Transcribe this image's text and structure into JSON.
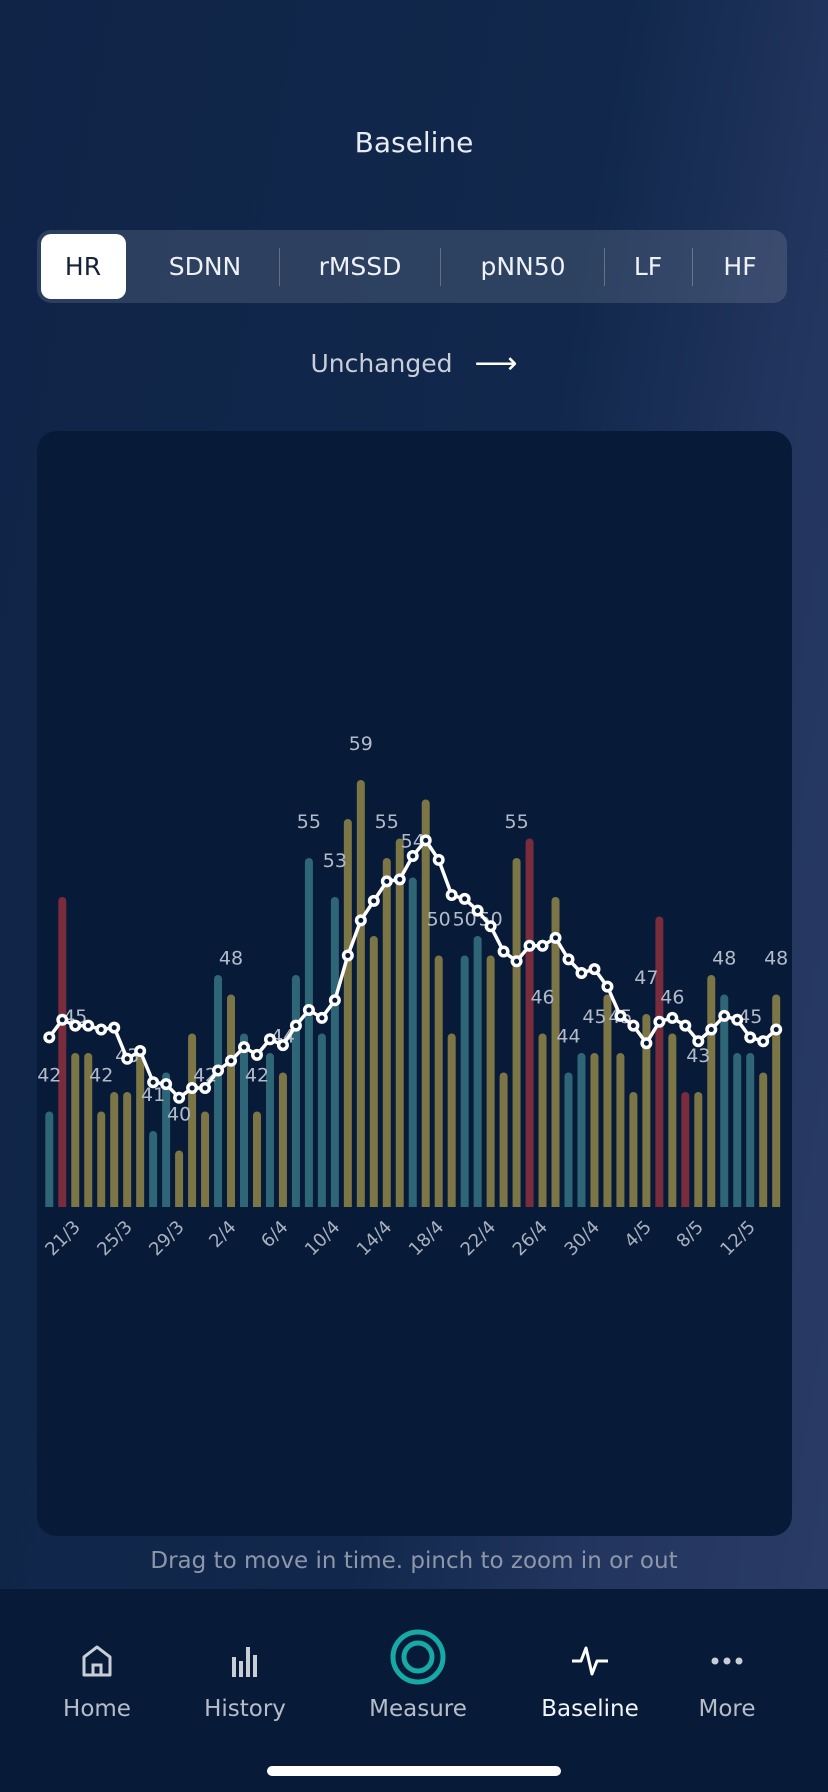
{
  "header": {
    "title": "Baseline"
  },
  "metric_tabs": [
    {
      "label": "HR",
      "active": true
    },
    {
      "label": "SDNN",
      "active": false
    },
    {
      "label": "rMSSD",
      "active": false
    },
    {
      "label": "pNN50",
      "active": false
    },
    {
      "label": "LF",
      "active": false
    },
    {
      "label": "HF",
      "active": false
    }
  ],
  "trend": {
    "label": "Unchanged",
    "icon": "arrow-right-icon",
    "arrow": "⟶"
  },
  "hint": "Drag to move in time. pinch to zoom in or out",
  "nav": [
    {
      "label": "Home",
      "icon": "home-icon",
      "active": false
    },
    {
      "label": "History",
      "icon": "bar-chart-icon",
      "active": false
    },
    {
      "label": "Measure",
      "icon": "measure-ring-icon",
      "active": false
    },
    {
      "label": "Baseline",
      "icon": "pulse-icon",
      "active": true
    },
    {
      "label": "More",
      "icon": "ellipsis-icon",
      "active": false
    }
  ],
  "colors": {
    "teal": "#2e6677",
    "olive": "#7c7545",
    "red": "#792c3c",
    "line": "#ffffff",
    "accent": "#17a9a6"
  },
  "chart_data": {
    "type": "bar",
    "categories": [
      "19/3",
      "20/3",
      "21/3",
      "22/3",
      "23/3",
      "24/3",
      "25/3",
      "26/3",
      "27/3",
      "28/3",
      "29/3",
      "30/3",
      "31/3",
      "1/4",
      "2/4",
      "3/4",
      "4/4",
      "5/4",
      "6/4",
      "7/4",
      "8/4",
      "9/4",
      "10/4",
      "11/4",
      "12/4",
      "13/4",
      "14/4",
      "15/4",
      "16/4",
      "17/4",
      "18/4",
      "19/4",
      "20/4",
      "21/4",
      "22/4",
      "23/4",
      "24/4",
      "25/4",
      "26/4",
      "27/4",
      "28/4",
      "29/4",
      "30/4",
      "1/5",
      "2/5",
      "3/5",
      "4/5",
      "5/5",
      "6/5",
      "7/5",
      "8/5",
      "9/5",
      "10/5",
      "11/5",
      "12/5",
      "13/5",
      "14/5"
    ],
    "x_tick_labels": [
      "21/3",
      "25/3",
      "29/3",
      "2/4",
      "6/4",
      "10/4",
      "14/4",
      "18/4",
      "22/4",
      "26/4",
      "30/4",
      "4/5",
      "8/5",
      "12/5"
    ],
    "series": [
      {
        "type": "bar",
        "values": [
          42,
          53,
          45,
          45,
          42,
          43,
          43,
          45,
          41,
          44,
          40,
          46,
          42,
          49,
          48,
          46,
          42,
          45,
          44,
          49,
          55,
          46,
          53,
          57,
          59,
          51,
          55,
          56,
          54,
          58,
          50,
          46,
          50,
          51,
          50,
          44,
          55,
          56,
          46,
          53,
          44,
          45,
          45,
          48,
          45,
          43,
          47,
          52,
          46,
          43,
          43,
          49,
          48,
          45,
          45,
          44,
          48
        ],
        "bar_colors": [
          "teal",
          "red",
          "olive",
          "olive",
          "olive",
          "olive",
          "olive",
          "olive",
          "teal",
          "teal",
          "olive",
          "olive",
          "olive",
          "teal",
          "olive",
          "teal",
          "olive",
          "teal",
          "olive",
          "teal",
          "teal",
          "teal",
          "teal",
          "olive",
          "olive",
          "olive",
          "olive",
          "olive",
          "teal",
          "olive",
          "olive",
          "olive",
          "teal",
          "teal",
          "olive",
          "olive",
          "olive",
          "red",
          "olive",
          "olive",
          "teal",
          "teal",
          "olive",
          "olive",
          "olive",
          "olive",
          "olive",
          "red",
          "olive",
          "red",
          "olive",
          "olive",
          "teal",
          "teal",
          "teal",
          "olive",
          "olive"
        ],
        "value_labels": [
          "42",
          "",
          "45",
          "",
          "42",
          "",
          "43",
          "",
          "41",
          "",
          "40",
          "",
          "42",
          "",
          "48",
          "",
          "42",
          "",
          "44",
          "",
          "55",
          "",
          "53",
          "",
          "59",
          "",
          "55",
          "",
          "54",
          "",
          "50",
          "",
          "50",
          "",
          "50",
          "",
          "55",
          "",
          "46",
          "",
          "44",
          "",
          "45",
          "",
          "45",
          "",
          "47",
          "",
          "46",
          "",
          "43",
          "",
          "48",
          "",
          "45",
          "",
          "48"
        ]
      },
      {
        "type": "line",
        "values": [
          45.8,
          46.7,
          46.4,
          46.4,
          46.2,
          46.3,
          44.7,
          45.1,
          43.5,
          43.4,
          42.7,
          43.2,
          43.2,
          44.1,
          44.6,
          45.3,
          44.9,
          45.7,
          45.4,
          46.4,
          47.2,
          46.8,
          47.7,
          50.0,
          51.8,
          52.8,
          53.8,
          53.9,
          55.1,
          55.9,
          54.9,
          53.1,
          52.9,
          52.3,
          51.5,
          50.2,
          49.7,
          50.5,
          50.5,
          50.9,
          49.8,
          49.1,
          49.3,
          48.4,
          46.9,
          46.4,
          45.5,
          46.6,
          46.8,
          46.4,
          45.6,
          46.2,
          46.9,
          46.7,
          45.8,
          45.6,
          46.2
        ]
      }
    ],
    "ylim": [
      37.1,
      65
    ],
    "grid": false
  }
}
